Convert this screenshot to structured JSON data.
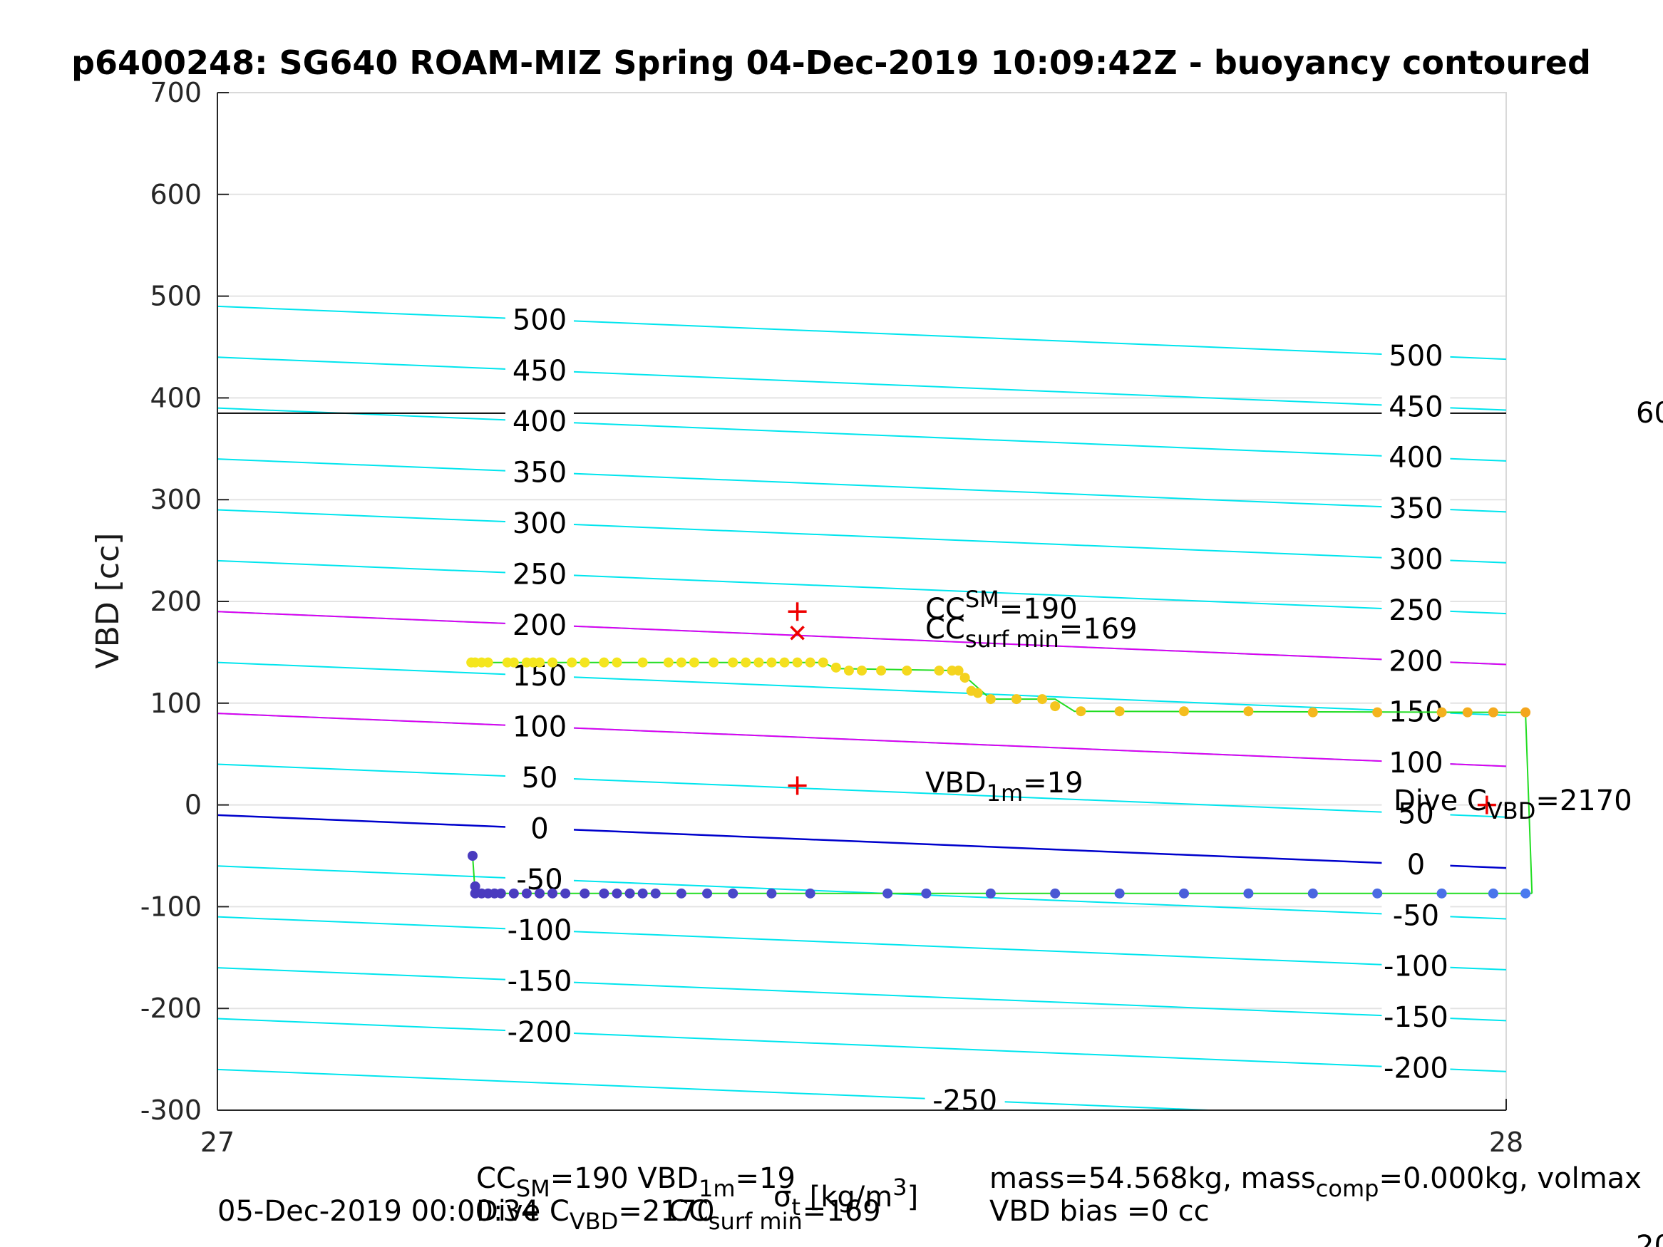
{
  "chart_data": {
    "type": "scatter",
    "title": "p6400248: SG640 ROAM-MIZ Spring 04-Dec-2019 10:09:42Z - buoyancy contoured",
    "ylabel": "VBD [cc]",
    "xlabel_parts": {
      "main": "σ",
      "sub": "t",
      "units": " [kg/m",
      "sup": "3",
      "close": "]"
    },
    "xlim": [
      27,
      28
    ],
    "ylim": [
      -300,
      700
    ],
    "x_ticks": [
      "27",
      "28"
    ],
    "y_ticks": [
      "-300",
      "-200",
      "-100",
      "0",
      "100",
      "200",
      "300",
      "400",
      "500",
      "600",
      "700"
    ],
    "grid": true,
    "contours": {
      "cyan_levels": [
        500,
        450,
        400,
        350,
        300,
        250,
        200,
        150,
        100,
        50,
        0,
        -50,
        -100,
        -150,
        -200,
        -250
      ],
      "cyan_left_y": [
        490,
        440,
        390,
        340,
        290,
        240,
        190,
        140,
        90,
        40,
        -10,
        -60,
        -110,
        -160,
        -210,
        -260
      ],
      "slope_per_sigma": -52,
      "left_labels": [
        "500",
        "450",
        "400",
        "350",
        "300",
        "250",
        "200",
        "150",
        "100",
        "50",
        "0",
        "-50",
        "-100",
        "-150",
        "-200"
      ],
      "right_labels": [
        "500",
        "450",
        "400",
        "350",
        "300",
        "250",
        "200",
        "150",
        "100",
        "50",
        "0",
        "-50",
        "-100",
        "-150",
        "-200"
      ],
      "bottom_label": "-250",
      "magenta_left_y": [
        190,
        90
      ],
      "blue_left_y": -10,
      "horizontal_black_y": 385,
      "colors": {
        "contour": "#00e5ee",
        "magenta": "#dd00ee",
        "blue": "#0000cc",
        "black": "#000000",
        "path": "#22dd22",
        "marker": "#ee0000"
      }
    },
    "series": [
      {
        "name": "",
        "color": "#f4e61e",
        "points": [
          [
            27.197,
            140
          ],
          [
            27.2,
            140
          ],
          [
            27.205,
            140
          ],
          [
            27.21,
            140
          ],
          [
            27.225,
            140
          ],
          [
            27.23,
            140
          ],
          [
            27.24,
            140
          ],
          [
            27.245,
            140
          ],
          [
            27.25,
            140
          ],
          [
            27.26,
            140
          ],
          [
            27.275,
            140
          ],
          [
            27.285,
            140
          ],
          [
            27.3,
            140
          ],
          [
            27.31,
            140
          ],
          [
            27.33,
            140
          ],
          [
            27.35,
            140
          ],
          [
            27.36,
            140
          ],
          [
            27.37,
            140
          ],
          [
            27.385,
            140
          ],
          [
            27.4,
            140
          ],
          [
            27.41,
            140
          ],
          [
            27.42,
            140
          ],
          [
            27.43,
            140
          ],
          [
            27.44,
            140
          ],
          [
            27.45,
            140
          ],
          [
            27.46,
            140
          ],
          [
            27.47,
            140
          ],
          [
            27.48,
            135
          ],
          [
            27.49,
            132
          ],
          [
            27.5,
            132
          ],
          [
            27.515,
            132
          ],
          [
            27.535,
            132
          ],
          [
            27.56,
            132
          ],
          [
            27.57,
            132
          ],
          [
            27.575,
            132
          ],
          [
            27.58,
            125
          ],
          [
            27.585,
            112
          ],
          [
            27.59,
            110
          ],
          [
            27.6,
            104
          ],
          [
            27.62,
            104
          ],
          [
            27.64,
            104
          ],
          [
            27.65,
            97
          ],
          [
            27.67,
            92
          ],
          [
            27.7,
            92
          ],
          [
            27.75,
            92
          ],
          [
            27.8,
            92
          ],
          [
            27.85,
            91
          ],
          [
            27.9,
            91
          ],
          [
            27.95,
            91
          ],
          [
            27.97,
            91
          ],
          [
            27.99,
            91
          ],
          [
            28.015,
            91
          ]
        ],
        "gradient_to": "#f4a61e"
      },
      {
        "name": "",
        "color": "#4a3bbf",
        "points": [
          [
            27.198,
            -50
          ],
          [
            27.2,
            -80
          ],
          [
            27.2,
            -87
          ],
          [
            27.205,
            -87
          ],
          [
            27.21,
            -87
          ],
          [
            27.215,
            -87
          ],
          [
            27.22,
            -87
          ],
          [
            27.23,
            -87
          ],
          [
            27.24,
            -87
          ],
          [
            27.25,
            -87
          ],
          [
            27.26,
            -87
          ],
          [
            27.27,
            -87
          ],
          [
            27.285,
            -87
          ],
          [
            27.3,
            -87
          ],
          [
            27.31,
            -87
          ],
          [
            27.32,
            -87
          ],
          [
            27.33,
            -87
          ],
          [
            27.34,
            -87
          ],
          [
            27.36,
            -87
          ],
          [
            27.38,
            -87
          ],
          [
            27.4,
            -87
          ],
          [
            27.43,
            -87
          ],
          [
            27.46,
            -87
          ],
          [
            27.52,
            -87
          ],
          [
            27.55,
            -87
          ],
          [
            27.6,
            -87
          ],
          [
            27.65,
            -87
          ],
          [
            27.7,
            -87
          ],
          [
            27.75,
            -87
          ],
          [
            27.8,
            -87
          ],
          [
            27.85,
            -87
          ],
          [
            27.9,
            -87
          ],
          [
            27.95,
            -87
          ],
          [
            27.99,
            -87
          ],
          [
            28.015,
            -87
          ]
        ],
        "gradient_to": "#4a7aef"
      }
    ],
    "path_segments": [
      [
        [
          27.198,
          140
        ],
        [
          27.47,
          140
        ],
        [
          27.48,
          134
        ],
        [
          27.575,
          132
        ],
        [
          27.6,
          104
        ],
        [
          27.65,
          104
        ],
        [
          27.665,
          92
        ],
        [
          28.015,
          91
        ],
        [
          28.02,
          -87
        ]
      ],
      [
        [
          27.198,
          -50
        ],
        [
          27.2,
          -87
        ],
        [
          28.02,
          -87
        ]
      ]
    ],
    "markers": [
      {
        "type": "plus",
        "x": 27.45,
        "y": 190
      },
      {
        "type": "cross",
        "x": 27.45,
        "y": 169
      },
      {
        "type": "plus",
        "x": 27.45,
        "y": 19
      },
      {
        "type": "plus",
        "x": 27.985,
        "y": 0
      }
    ],
    "annotations": {
      "cc_sm": {
        "main": "CC",
        "sub": "SM",
        "value": "=190"
      },
      "cc_surf": {
        "main": "CC",
        "sub": "surf min",
        "value": "=169"
      },
      "vbd_1m": {
        "main": "VBD",
        "sub": "1m",
        "value": "=19"
      },
      "dive_c": {
        "main": "Dive C",
        "sub": "VBD",
        "value": "=2170"
      },
      "right_edge_60": "60"
    },
    "footer": {
      "row1_left_parts": [
        {
          "t": "CC"
        },
        {
          "t": "SM",
          "sub": true
        },
        {
          "t": "=190   VBD"
        },
        {
          "t": "1m",
          "sub": true
        },
        {
          "t": "=19"
        }
      ],
      "row2_left": "05-Dec-2019 00:00:34",
      "row2_mid_parts": [
        {
          "t": "Dive C"
        },
        {
          "t": "VBD",
          "sub": true
        },
        {
          "t": "=2170"
        }
      ],
      "row2_cc_parts": [
        {
          "t": "CC"
        },
        {
          "t": "surf min",
          "sub": true
        },
        {
          "t": "=169"
        }
      ],
      "row1_right_parts": [
        {
          "t": "mass=54.568kg, mass"
        },
        {
          "t": "comp",
          "sub": true
        },
        {
          "t": "=0.000kg, volmax"
        }
      ],
      "row2_right": "VBD bias =0 cc",
      "bottom_right_cut": "20"
    }
  }
}
